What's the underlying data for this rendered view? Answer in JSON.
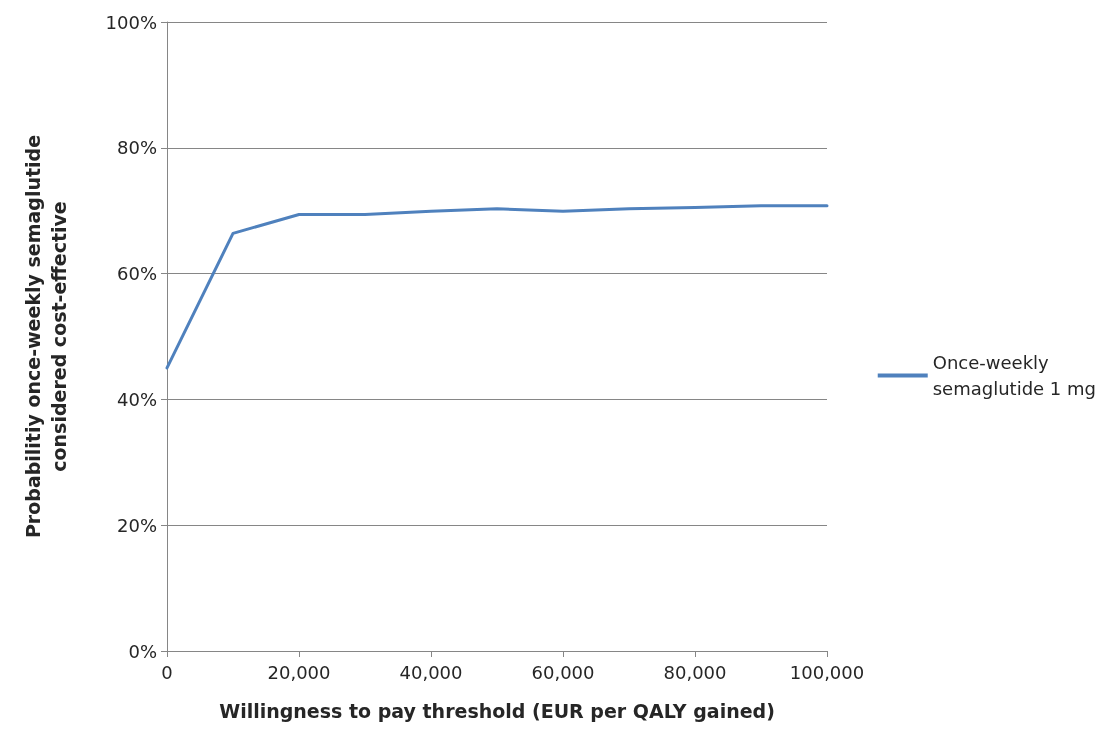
{
  "chart_data": {
    "type": "line",
    "xlabel": "Willingness to pay threshold (EUR per QALY gained)",
    "ylabel": "Probabilitiy once-weekly semaglutide\nconsidered cost-effective",
    "x": [
      0,
      10000,
      20000,
      30000,
      40000,
      50000,
      60000,
      70000,
      80000,
      90000,
      100000
    ],
    "series": [
      {
        "name": "Once-weekly\nsemaglutide 1 mg",
        "color": "#4f81bd",
        "values": [
          45,
          66.4,
          69.4,
          69.4,
          69.9,
          70.3,
          69.9,
          70.3,
          70.5,
          70.8,
          70.8
        ]
      }
    ],
    "xlim": [
      0,
      100000
    ],
    "xticks": [
      0,
      {
        "value": 20000,
        "label": "20,000"
      },
      {
        "value": 40000,
        "label": "40,000"
      },
      {
        "value": 60000,
        "label": "60,000"
      },
      {
        "value": 80000,
        "label": "80,000"
      },
      {
        "value": 100000,
        "label": "100,000"
      }
    ],
    "ylim": [
      0,
      100
    ],
    "yticks": [
      {
        "value": 0,
        "label": "0%"
      },
      {
        "value": 20,
        "label": "20%"
      },
      {
        "value": 40,
        "label": "40%"
      },
      {
        "value": 60,
        "label": "60%"
      },
      {
        "value": 80,
        "label": "80%"
      },
      {
        "value": 100,
        "label": "100%"
      }
    ],
    "grid": "y",
    "legend": "right",
    "marker": "none",
    "line_style": "solid"
  }
}
